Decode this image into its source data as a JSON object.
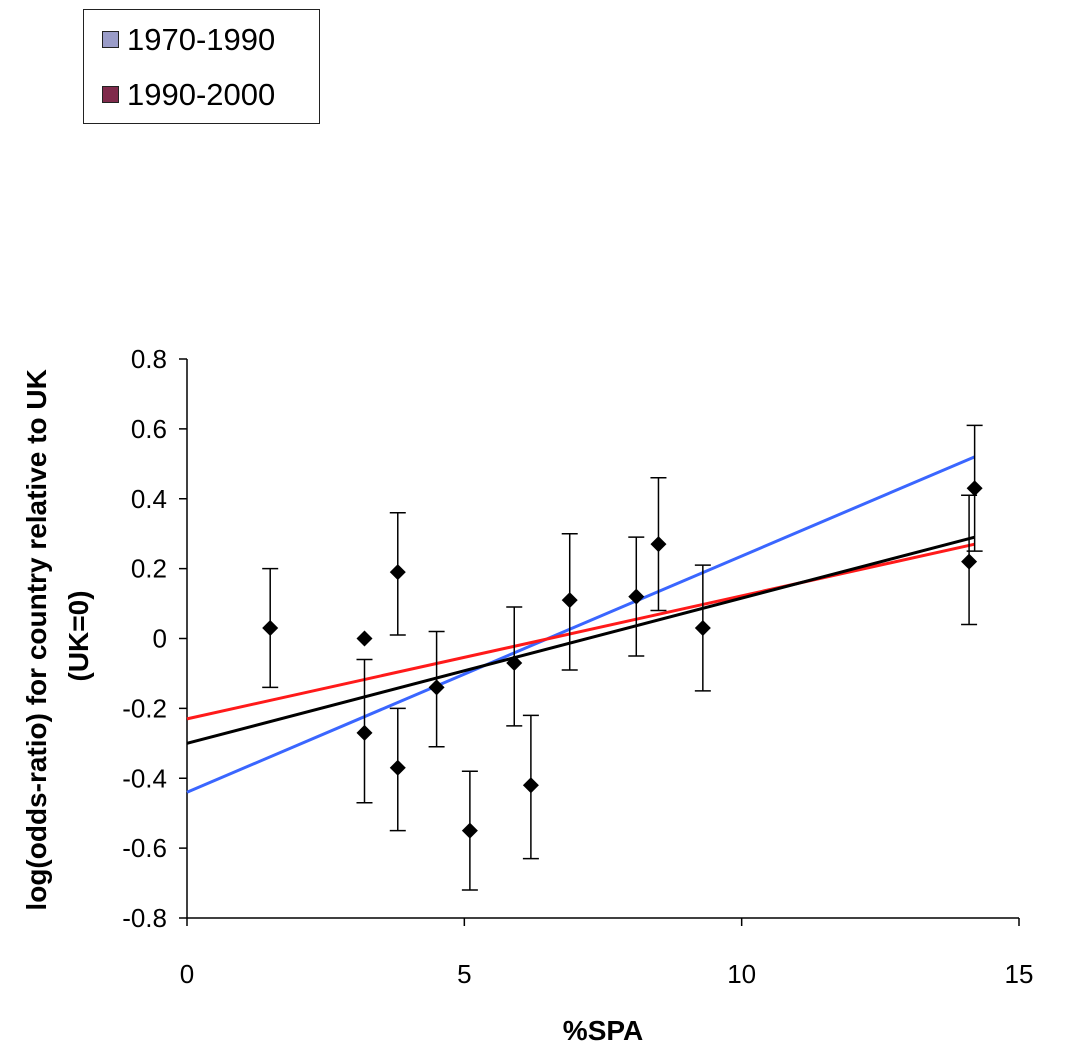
{
  "chart_data": {
    "type": "scatter",
    "title": "",
    "xlabel": "%SPA",
    "ylabel": "log(odds-ratio) for country relative to UK (UK=0)",
    "ylabel_lines": [
      "log(odds-ratio) for country relative to UK",
      "(UK=0)"
    ],
    "xlim": [
      0,
      15
    ],
    "ylim": [
      -0.8,
      0.8
    ],
    "x_ticks": [
      0,
      5,
      10,
      15
    ],
    "x_tick_labels": [
      "0",
      "5",
      "10",
      "15"
    ],
    "y_ticks": [
      -0.8,
      -0.6,
      -0.4,
      -0.2,
      0,
      0.2,
      0.4,
      0.6,
      0.8
    ],
    "y_tick_labels": [
      "-0.8",
      "-0.6",
      "-0.4",
      "-0.2",
      "0",
      "0.2",
      "0.4",
      "0.6",
      "0.8"
    ],
    "grid": false,
    "legend": {
      "position": "top-left",
      "entries": [
        {
          "label": "1970-1990",
          "color": "#9a9cc8"
        },
        {
          "label": "1990-2000",
          "color": "#7f2a4b"
        }
      ]
    },
    "points": [
      {
        "x": 1.5,
        "y": 0.03,
        "err_low": -0.14,
        "err_high": 0.2
      },
      {
        "x": 3.2,
        "y": 0.0
      },
      {
        "x": 3.2,
        "y": -0.27,
        "err_low": -0.47,
        "err_high": -0.06
      },
      {
        "x": 3.8,
        "y": 0.19,
        "err_low": 0.01,
        "err_high": 0.36
      },
      {
        "x": 3.8,
        "y": -0.37,
        "err_low": -0.55,
        "err_high": -0.2
      },
      {
        "x": 4.5,
        "y": -0.14,
        "err_low": -0.31,
        "err_high": 0.02
      },
      {
        "x": 5.1,
        "y": -0.55,
        "err_low": -0.72,
        "err_high": -0.38
      },
      {
        "x": 5.9,
        "y": -0.07,
        "err_low": -0.25,
        "err_high": 0.09
      },
      {
        "x": 6.2,
        "y": -0.42,
        "err_low": -0.63,
        "err_high": -0.22
      },
      {
        "x": 6.9,
        "y": 0.11,
        "err_low": -0.09,
        "err_high": 0.3
      },
      {
        "x": 8.1,
        "y": 0.12,
        "err_low": -0.05,
        "err_high": 0.29
      },
      {
        "x": 8.5,
        "y": 0.27,
        "err_low": 0.08,
        "err_high": 0.46
      },
      {
        "x": 9.3,
        "y": 0.03,
        "err_low": -0.15,
        "err_high": 0.21
      },
      {
        "x": 14.1,
        "y": 0.22,
        "err_low": 0.04,
        "err_high": 0.41
      },
      {
        "x": 14.2,
        "y": 0.43,
        "err_low": 0.25,
        "err_high": 0.61
      }
    ],
    "fit_lines": [
      {
        "color": "#3a66ff",
        "x": [
          0,
          14.2
        ],
        "y": [
          -0.44,
          0.52
        ]
      },
      {
        "color": "#ff1a1a",
        "x": [
          0,
          14.2
        ],
        "y": [
          -0.23,
          0.27
        ]
      },
      {
        "color": "#000000",
        "x": [
          0,
          14.2
        ],
        "y": [
          -0.3,
          0.29
        ]
      }
    ]
  }
}
